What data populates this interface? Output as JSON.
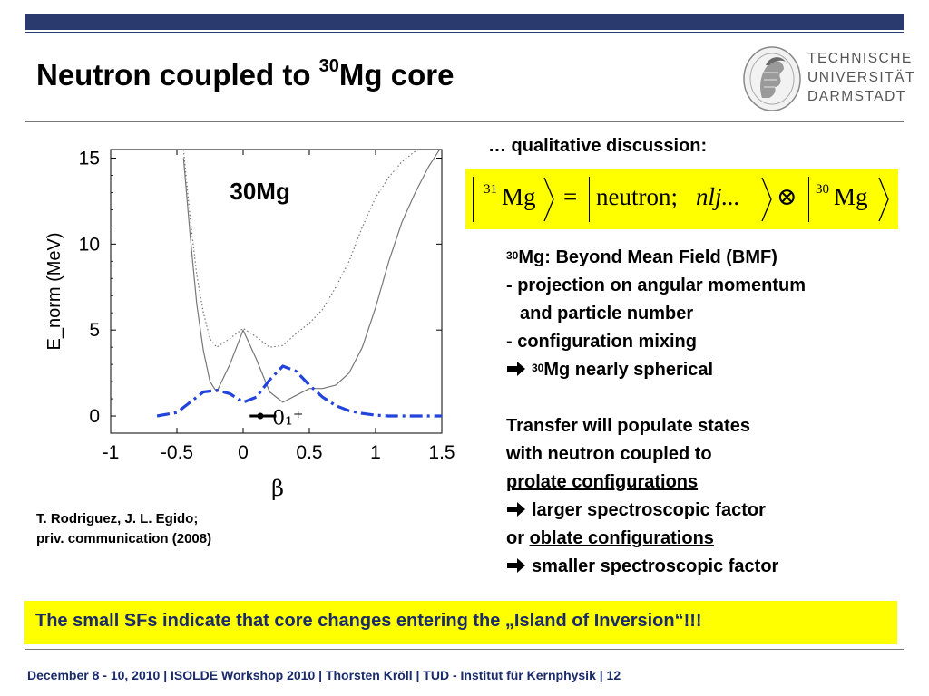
{
  "slide": {
    "title_main": "Neutron coupled to ",
    "title_sup": "30",
    "title_end": "Mg core",
    "logo_lines": [
      "TECHNISCHE",
      "UNIVERSITÄT",
      "DARMSTADT"
    ]
  },
  "chart_data": {
    "type": "line",
    "title": "30Mg",
    "xlabel": "β",
    "ylabel": "E_norm (MeV)",
    "xlim": [
      -1,
      1.5
    ],
    "ylim": [
      -1,
      15.5
    ],
    "xticks": [
      "-1",
      "-0.5",
      "0",
      "0.5",
      "1",
      "1.5"
    ],
    "yticks": [
      "0",
      "5",
      "10",
      "15"
    ],
    "annotation": "0₁⁺",
    "ground_state": {
      "x_range": [
        0.05,
        0.25
      ],
      "y": 0.0,
      "marker_x": 0.13
    },
    "series": [
      {
        "style": "grey-solid",
        "color": "#777777",
        "x": [
          -0.45,
          -0.4,
          -0.35,
          -0.3,
          -0.25,
          -0.2,
          -0.1,
          0.0,
          0.1,
          0.2,
          0.3,
          0.4,
          0.5,
          0.6,
          0.7,
          0.8,
          0.9,
          1.0,
          1.1,
          1.2,
          1.3,
          1.4,
          1.5
        ],
        "y": [
          15,
          10.5,
          6.5,
          3.8,
          2.0,
          1.4,
          3.0,
          5.0,
          3.3,
          1.4,
          0.8,
          1.2,
          1.6,
          1.6,
          1.8,
          2.5,
          4.0,
          6.3,
          9.0,
          11.3,
          13.0,
          14.5,
          15.7
        ]
      },
      {
        "style": "grey-dotted",
        "color": "#777777",
        "x": [
          -0.45,
          -0.4,
          -0.35,
          -0.3,
          -0.25,
          -0.2,
          -0.1,
          0.0,
          0.1,
          0.2,
          0.3,
          0.4,
          0.5,
          0.6,
          0.7,
          0.8,
          0.9,
          1.0,
          1.1,
          1.2,
          1.3,
          1.4
        ],
        "y": [
          15.5,
          11.5,
          8.2,
          6.0,
          4.5,
          4.0,
          4.5,
          5.1,
          4.6,
          4.0,
          4.1,
          4.8,
          5.4,
          6.2,
          7.5,
          9.0,
          11.0,
          12.7,
          13.9,
          14.8,
          15.4,
          15.8
        ]
      },
      {
        "style": "blue-dashdot",
        "color": "#2244dd",
        "x": [
          -0.65,
          -0.5,
          -0.4,
          -0.3,
          -0.2,
          -0.1,
          0.0,
          0.1,
          0.2,
          0.3,
          0.4,
          0.5,
          0.6,
          0.7,
          0.8,
          0.9,
          1.0,
          1.1,
          1.2,
          1.3,
          1.4,
          1.5
        ],
        "y": [
          0.0,
          0.2,
          0.8,
          1.4,
          1.5,
          1.3,
          0.8,
          1.1,
          2.1,
          2.9,
          2.6,
          1.8,
          1.1,
          0.6,
          0.3,
          0.15,
          0.05,
          0.0,
          0.0,
          0.0,
          0.0,
          0.0
        ]
      }
    ]
  },
  "citation": {
    "line1": "T. Rodriguez, J. L. Egido;",
    "line2": "priv. communication (2008)"
  },
  "right": {
    "qual_heading": "… qualitative discussion:",
    "formula": {
      "sup1": "31",
      "mg1": "Mg",
      "equals": "=",
      "neutron": "neutron;",
      "nlj": "nlj...",
      "otimes": "⊗",
      "sup2": "30",
      "mg2": "Mg"
    },
    "bmf_sup": "30",
    "bmf_title": "Mg: Beyond Mean Field (BMF)",
    "bullet1": "- projection on angular momentum",
    "bullet1b": "and particle number",
    "bullet2": "- configuration mixing",
    "arrow1_sup": "30",
    "arrow1_text": "Mg nearly spherical",
    "transfer1": "Transfer will populate states",
    "transfer2": "with neutron coupled to",
    "prolate": "prolate configurations",
    "larger": "larger spectroscopic factor",
    "or_word": "or ",
    "oblate": "oblate configurations",
    "smaller": "smaller spectroscopic factor"
  },
  "conclusion": "The small SFs indicate that core changes entering the „Island of Inversion“!!!",
  "footer": "December 8 - 10, 2010  |  ISOLDE Workshop 2010  | Thorsten Kröll | TUD - Institut für Kernphysik  |  12",
  "colors": {
    "navy": "#2a3a6e",
    "highlight": "#ffff00",
    "curve_blue": "#2244dd",
    "curve_grey": "#777777"
  }
}
